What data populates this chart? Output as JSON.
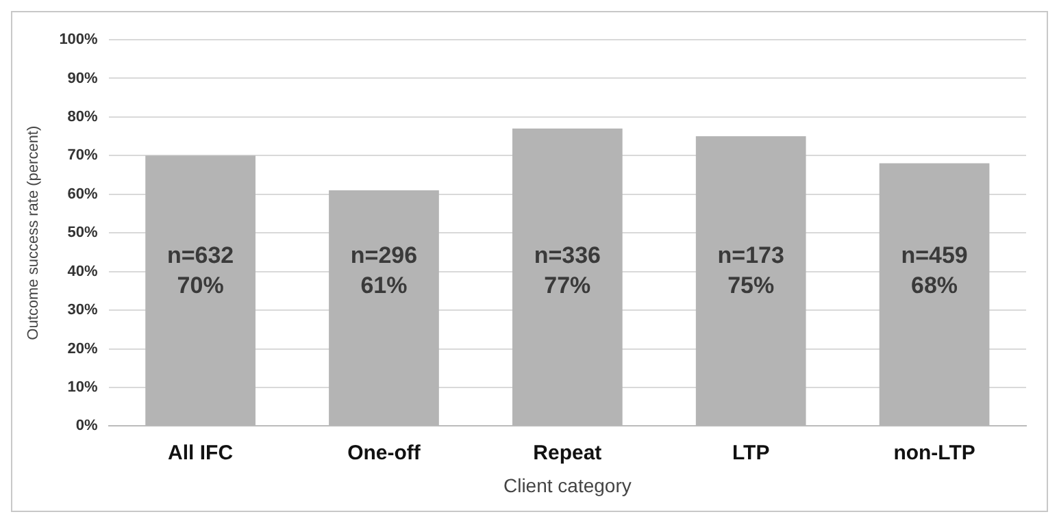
{
  "chart_data": {
    "type": "bar",
    "xlabel": "Client category",
    "ylabel": "Outcome success rate (percent)",
    "categories": [
      "All IFC",
      "One-off",
      "Repeat",
      "LTP",
      "non-LTP"
    ],
    "values": [
      70,
      61,
      77,
      75,
      68
    ],
    "color": "#b4b4b4",
    "value_labels": [
      "n=632\n70%",
      "n=296\n61%",
      "n=336\n77%",
      "n=173\n75%",
      "n=459\n68%"
    ],
    "ylim": [
      0,
      100
    ],
    "yticks": [
      {
        "value": 0,
        "label": "0%"
      },
      {
        "value": 10,
        "label": "10%"
      },
      {
        "value": 20,
        "label": "20%"
      },
      {
        "value": 30,
        "label": "30%"
      },
      {
        "value": 40,
        "label": "40%"
      },
      {
        "value": 50,
        "label": "50%"
      },
      {
        "value": 60,
        "label": "60%"
      },
      {
        "value": 70,
        "label": "70%"
      },
      {
        "value": 80,
        "label": "80%"
      },
      {
        "value": 90,
        "label": "90%"
      },
      {
        "value": 100,
        "label": "100%"
      }
    ],
    "grid": "y",
    "legend": false
  }
}
